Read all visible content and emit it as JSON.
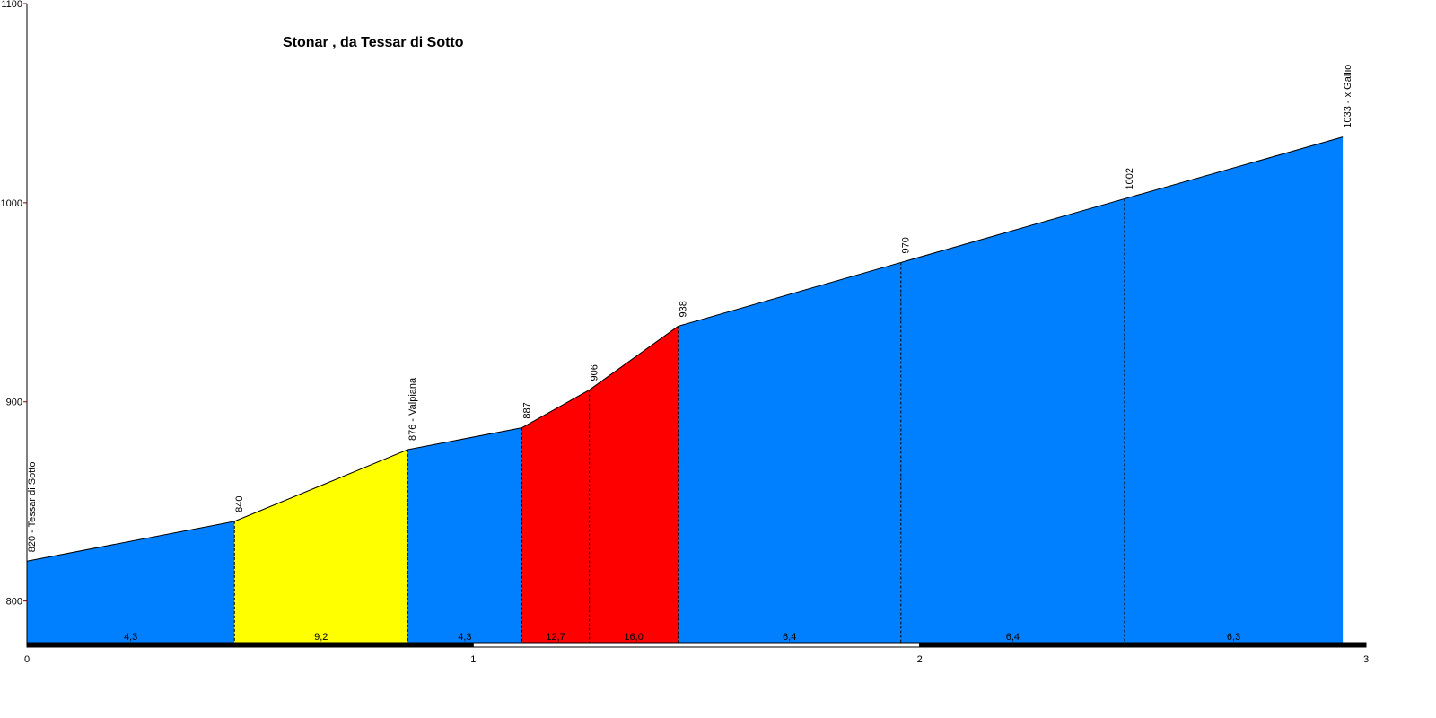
{
  "chart_data": {
    "type": "profile",
    "title": "Stonar , da Tessar di Sotto",
    "x": [
      0,
      0.465,
      0.853,
      1.109,
      1.26,
      1.459,
      1.958,
      2.459,
      2.948
    ],
    "values": [
      820,
      840,
      876,
      887,
      906,
      938,
      970,
      1002,
      1033
    ],
    "value_labels": [
      "820 - Tessar di Sotto",
      "840",
      "876 - Valpiana",
      "887",
      "906",
      "938",
      "970",
      "1002",
      "1033 - x Gallio"
    ],
    "gradients": [
      4.3,
      9.2,
      4.3,
      12.7,
      16.0,
      6.4,
      6.4,
      6.3
    ],
    "gradient_labels": [
      "4,3",
      "9,2",
      "4,3",
      "12,7",
      "16,0",
      "6,4",
      "6,4",
      "6,3"
    ],
    "segment_colors": [
      "#0080ff",
      "#ffff00",
      "#0080ff",
      "#ff0000",
      "#ff0000",
      "#0080ff",
      "#0080ff",
      "#0080ff"
    ],
    "xlim": [
      0,
      3
    ],
    "xticks": [
      0,
      1,
      2,
      3
    ],
    "ylim": [
      780,
      1100
    ],
    "yticks": [
      800,
      900,
      1000,
      1100
    ]
  }
}
